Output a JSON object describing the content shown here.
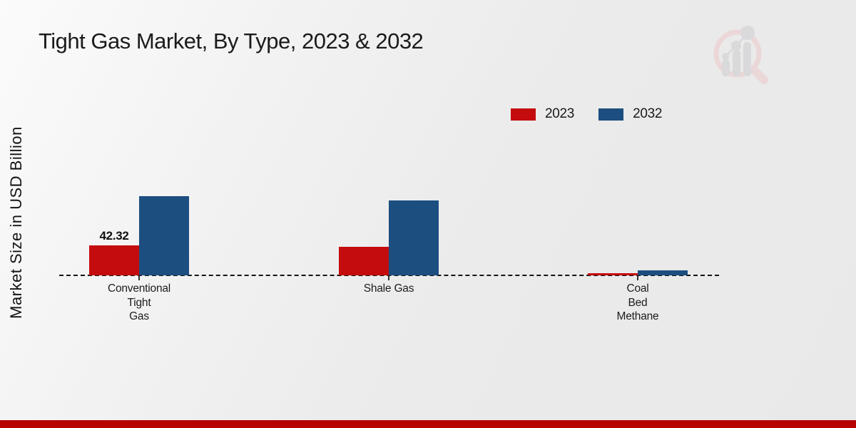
{
  "title": "Tight Gas Market, By Type, 2023 & 2032",
  "ylabel": "Market Size in USD Billion",
  "colors": {
    "series_2023": "#c40c0e",
    "series_2032": "#1c4e80",
    "baseline": "#141414",
    "footer_strip": "#b50400",
    "title_text": "#1b1b1b"
  },
  "legend": {
    "position": "top-right",
    "items": [
      {
        "label": "2023",
        "color": "#c40c0e"
      },
      {
        "label": "2032",
        "color": "#1c4e80"
      }
    ]
  },
  "watermark_icon": "market-research-future-magnifier-logo",
  "chart_data": {
    "type": "bar",
    "title": "Tight Gas Market, By Type, 2023 & 2032",
    "xlabel": "",
    "ylabel": "Market Size in USD Billion",
    "categories": [
      "Conventional Tight Gas",
      "Shale Gas",
      "Coal Bed Methane"
    ],
    "category_label_lines": [
      [
        "Conventional",
        "Tight",
        "Gas"
      ],
      [
        "Shale Gas"
      ],
      [
        "Coal",
        "Bed",
        "Methane"
      ]
    ],
    "series": [
      {
        "name": "2023",
        "color": "#c40c0e",
        "values": [
          42.32,
          40.3,
          3.0
        ],
        "data_labels": [
          "42.32",
          "",
          ""
        ]
      },
      {
        "name": "2032",
        "color": "#1c4e80",
        "values": [
          111.9,
          105.8,
          7.1
        ],
        "data_labels": [
          "",
          "",
          ""
        ]
      }
    ],
    "ylim": [
      0,
      120
    ],
    "grid": false,
    "baseline_style": "dashed",
    "legend_position": "top-right",
    "notes": "Only the 2023 Conventional Tight Gas bar is labeled (42.32); other values estimated from bar heights."
  }
}
